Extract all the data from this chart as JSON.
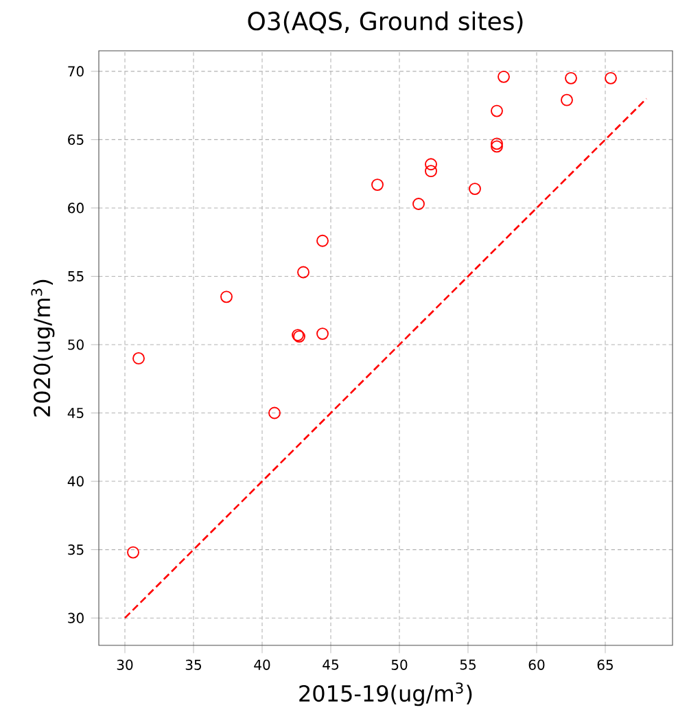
{
  "chart_data": {
    "type": "scatter",
    "title": "O3(AQS, Ground sites)",
    "xlabel": "2015-19(ug/m$^{3}$)",
    "ylabel": "2020(ug/m$^{3}$)",
    "xlim": [
      28.1,
      69.9
    ],
    "ylim": [
      28.0,
      71.5
    ],
    "xticks": [
      30,
      35,
      40,
      45,
      50,
      55,
      60,
      65
    ],
    "yticks": [
      30,
      35,
      40,
      45,
      50,
      55,
      60,
      65,
      70
    ],
    "grid": true,
    "marker": "circle",
    "series": [
      {
        "color": "#ff0000",
        "x": [
          30.6,
          31.0,
          37.4,
          40.9,
          42.6,
          42.7,
          43.0,
          44.4,
          44.4,
          48.4,
          51.4,
          52.3,
          52.3,
          55.5,
          57.1,
          57.1,
          57.1,
          57.6,
          62.2,
          62.5,
          65.4
        ],
        "values": [
          34.8,
          49.0,
          53.5,
          45.0,
          50.7,
          50.6,
          55.3,
          50.8,
          57.6,
          61.7,
          60.3,
          63.2,
          62.7,
          61.4,
          67.1,
          64.7,
          64.5,
          69.6,
          67.9,
          69.5,
          69.5
        ]
      },
      {
        "type": "line",
        "color": "#ff0000",
        "marker": "none",
        "line_style": "dashed",
        "x": [
          30,
          68
        ],
        "values": [
          30,
          68
        ]
      }
    ]
  }
}
